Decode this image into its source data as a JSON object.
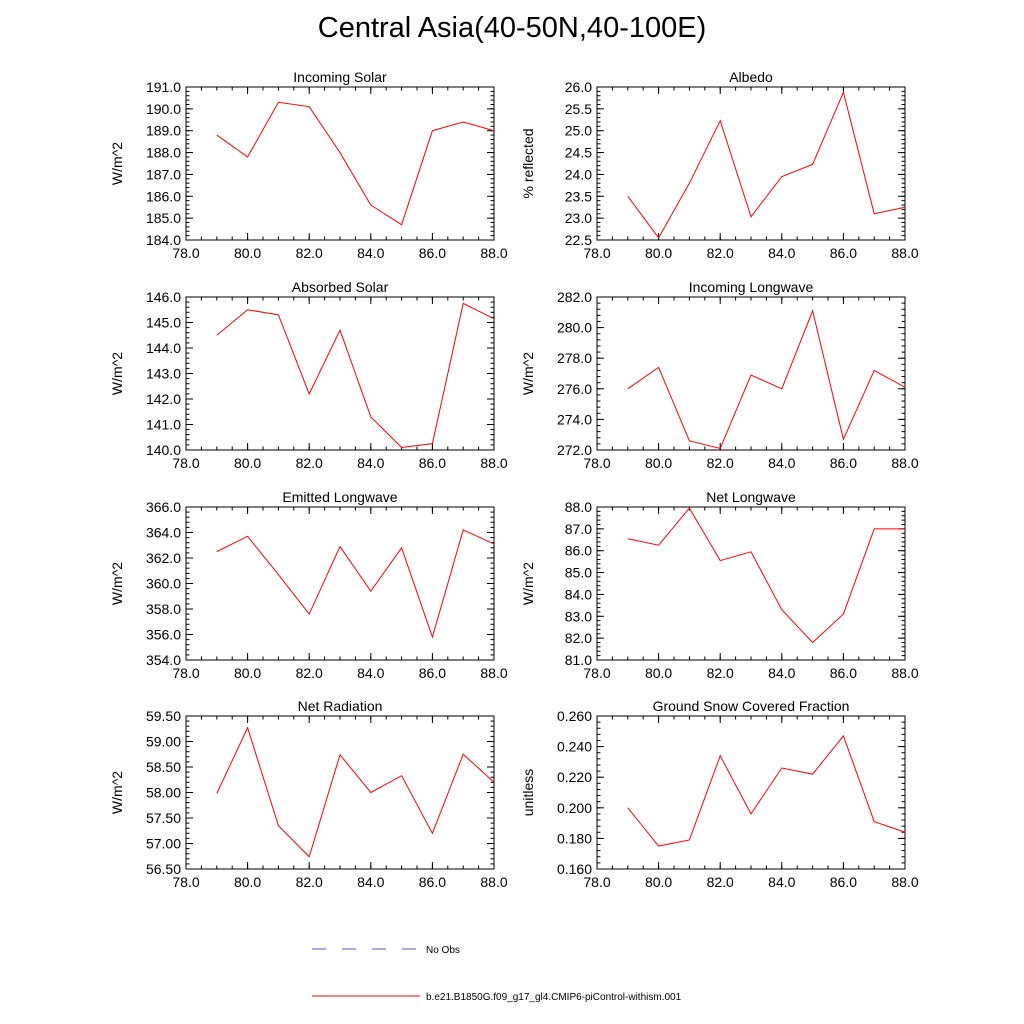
{
  "title": "Central Asia(40-50N,40-100E)",
  "colors": {
    "model_line": "#ff0000",
    "obs_line": "#5555cc",
    "axis": "#000000"
  },
  "legend": {
    "entries": [
      {
        "label": "No Obs",
        "style": "dashed",
        "color": "#5555cc"
      },
      {
        "label": "b.e21.B1850G.f09_g17_gl4.CMIP6-piControl-withism.001",
        "style": "solid",
        "color": "#ff0000"
      }
    ]
  },
  "chart_data": [
    {
      "type": "line",
      "title": "Incoming Solar",
      "ylabel": "W/m^2",
      "xlabel": "",
      "xlim": [
        78,
        88
      ],
      "ylim": [
        184,
        191
      ],
      "xticks": [
        "78.0",
        "80.0",
        "82.0",
        "84.0",
        "86.0",
        "88.0"
      ],
      "yticks": [
        "184.0",
        "185.0",
        "186.0",
        "187.0",
        "188.0",
        "189.0",
        "190.0",
        "191.0"
      ],
      "x": [
        79,
        80,
        81,
        82,
        83,
        84,
        85,
        86,
        87,
        88
      ],
      "series": [
        {
          "name": "b.e21.B1850G.f09_g17_gl4.CMIP6-piControl-withism.001",
          "values": [
            188.8,
            187.8,
            190.3,
            190.1,
            188.0,
            185.6,
            184.7,
            189.0,
            189.4,
            189.0
          ]
        }
      ]
    },
    {
      "type": "line",
      "title": "Albedo",
      "ylabel": "% reflected",
      "xlabel": "",
      "xlim": [
        78,
        88
      ],
      "ylim": [
        22.5,
        26.0
      ],
      "xticks": [
        "78.0",
        "80.0",
        "82.0",
        "84.0",
        "86.0",
        "88.0"
      ],
      "yticks": [
        "22.5",
        "23.0",
        "23.5",
        "24.0",
        "24.5",
        "25.0",
        "25.5",
        "26.0"
      ],
      "x": [
        79,
        80,
        81,
        82,
        83,
        84,
        85,
        86,
        87,
        88
      ],
      "series": [
        {
          "name": "b.e21.B1850G.f09_g17_gl4.CMIP6-piControl-withism.001",
          "values": [
            23.5,
            22.55,
            23.8,
            25.23,
            23.03,
            23.95,
            24.23,
            25.88,
            23.1,
            23.25
          ]
        }
      ]
    },
    {
      "type": "line",
      "title": "Absorbed Solar",
      "ylabel": "W/m^2",
      "xlabel": "",
      "xlim": [
        78,
        88
      ],
      "ylim": [
        140,
        146
      ],
      "xticks": [
        "78.0",
        "80.0",
        "82.0",
        "84.0",
        "86.0",
        "88.0"
      ],
      "yticks": [
        "140.0",
        "141.0",
        "142.0",
        "143.0",
        "144.0",
        "145.0",
        "146.0"
      ],
      "x": [
        79,
        80,
        81,
        82,
        83,
        84,
        85,
        86,
        87,
        88
      ],
      "series": [
        {
          "name": "b.e21.B1850G.f09_g17_gl4.CMIP6-piControl-withism.001",
          "values": [
            144.5,
            145.5,
            145.3,
            142.2,
            144.7,
            141.3,
            140.1,
            140.25,
            145.75,
            145.15
          ]
        }
      ]
    },
    {
      "type": "line",
      "title": "Incoming Longwave",
      "ylabel": "W/m^2",
      "xlabel": "",
      "xlim": [
        78,
        88
      ],
      "ylim": [
        272,
        282
      ],
      "xticks": [
        "78.0",
        "80.0",
        "82.0",
        "84.0",
        "86.0",
        "88.0"
      ],
      "yticks": [
        "272.0",
        "274.0",
        "276.0",
        "278.0",
        "280.0",
        "282.0"
      ],
      "x": [
        79,
        80,
        81,
        82,
        83,
        84,
        85,
        86,
        87,
        88
      ],
      "series": [
        {
          "name": "b.e21.B1850G.f09_g17_gl4.CMIP6-piControl-withism.001",
          "values": [
            276.0,
            277.4,
            272.6,
            272.1,
            276.9,
            276.0,
            281.1,
            272.7,
            277.2,
            276.1
          ]
        }
      ]
    },
    {
      "type": "line",
      "title": "Emitted Longwave",
      "ylabel": "W/m^2",
      "xlabel": "",
      "xlim": [
        78,
        88
      ],
      "ylim": [
        354,
        366
      ],
      "xticks": [
        "78.0",
        "80.0",
        "82.0",
        "84.0",
        "86.0",
        "88.0"
      ],
      "yticks": [
        "354.0",
        "356.0",
        "358.0",
        "360.0",
        "362.0",
        "364.0",
        "366.0"
      ],
      "x": [
        79,
        80,
        81,
        82,
        83,
        84,
        85,
        86,
        87,
        88
      ],
      "series": [
        {
          "name": "b.e21.B1850G.f09_g17_gl4.CMIP6-piControl-withism.001",
          "values": [
            362.5,
            363.7,
            360.7,
            357.6,
            362.9,
            359.4,
            362.8,
            355.8,
            364.2,
            363.1
          ]
        }
      ]
    },
    {
      "type": "line",
      "title": "Net Longwave",
      "ylabel": "W/m^2",
      "xlabel": "",
      "xlim": [
        78,
        88
      ],
      "ylim": [
        81,
        88
      ],
      "xticks": [
        "78.0",
        "80.0",
        "82.0",
        "84.0",
        "86.0",
        "88.0"
      ],
      "yticks": [
        "81.0",
        "82.0",
        "83.0",
        "84.0",
        "85.0",
        "86.0",
        "87.0",
        "88.0"
      ],
      "x": [
        79,
        80,
        81,
        82,
        83,
        84,
        85,
        86,
        87,
        88
      ],
      "series": [
        {
          "name": "b.e21.B1850G.f09_g17_gl4.CMIP6-piControl-withism.001",
          "values": [
            86.55,
            86.25,
            87.95,
            85.55,
            85.95,
            83.3,
            81.8,
            83.1,
            87.0,
            87.0
          ]
        }
      ]
    },
    {
      "type": "line",
      "title": "Net Radiation",
      "ylabel": "W/m^2",
      "xlabel": "",
      "xlim": [
        78,
        88
      ],
      "ylim": [
        56.5,
        59.5
      ],
      "xticks": [
        "78.0",
        "80.0",
        "82.0",
        "84.0",
        "86.0",
        "88.0"
      ],
      "yticks": [
        "56.50",
        "57.00",
        "57.50",
        "58.00",
        "58.50",
        "59.00",
        "59.50"
      ],
      "x": [
        79,
        80,
        81,
        82,
        83,
        84,
        85,
        86,
        87,
        88
      ],
      "series": [
        {
          "name": "b.e21.B1850G.f09_g17_gl4.CMIP6-piControl-withism.001",
          "values": [
            57.98,
            59.27,
            57.35,
            56.74,
            58.74,
            58.0,
            58.33,
            57.2,
            58.75,
            58.2
          ]
        }
      ]
    },
    {
      "type": "line",
      "title": "Ground Snow Covered Fraction",
      "ylabel": "unitless",
      "xlabel": "",
      "xlim": [
        78,
        88
      ],
      "ylim": [
        0.16,
        0.26
      ],
      "xticks": [
        "78.0",
        "80.0",
        "82.0",
        "84.0",
        "86.0",
        "88.0"
      ],
      "yticks": [
        "0.160",
        "0.180",
        "0.200",
        "0.220",
        "0.240",
        "0.260"
      ],
      "x": [
        79,
        80,
        81,
        82,
        83,
        84,
        85,
        86,
        87,
        88
      ],
      "series": [
        {
          "name": "b.e21.B1850G.f09_g17_gl4.CMIP6-piControl-withism.001",
          "values": [
            0.2,
            0.175,
            0.179,
            0.234,
            0.196,
            0.226,
            0.222,
            0.247,
            0.191,
            0.184
          ]
        }
      ]
    }
  ]
}
